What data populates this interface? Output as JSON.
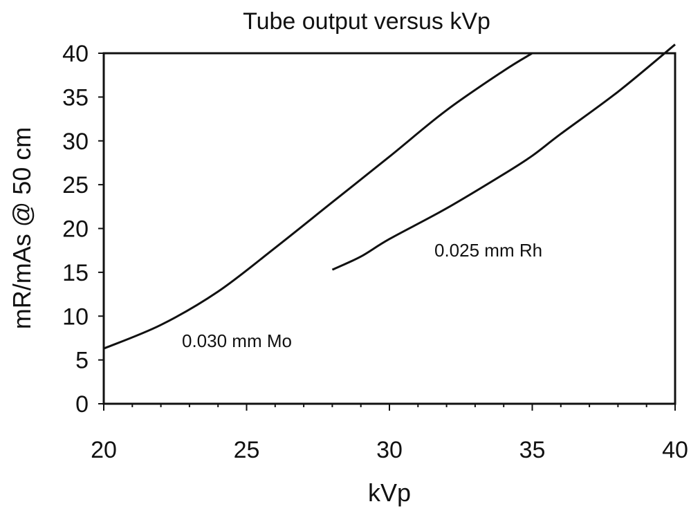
{
  "chart_data": {
    "type": "line",
    "title": "Tube output versus kVp",
    "xlabel": "kVp",
    "ylabel": "mR/mAs @ 50 cm",
    "xlim": [
      20,
      40
    ],
    "ylim": [
      0,
      40
    ],
    "x_ticks": [
      20,
      25,
      30,
      35,
      40
    ],
    "y_ticks": [
      0,
      5,
      10,
      15,
      20,
      25,
      30,
      35,
      40
    ],
    "grid": false,
    "legend": "none",
    "series": [
      {
        "name": "0.030 mm Mo",
        "x": [
          20,
          22,
          24,
          26,
          28,
          30,
          32,
          34,
          35
        ],
        "y": [
          6.3,
          9,
          12.8,
          17.8,
          23,
          28.2,
          33.5,
          38,
          40
        ]
      },
      {
        "name": "0.025 mm Rh",
        "x": [
          28,
          29,
          30,
          32,
          34,
          35,
          36,
          38,
          40
        ],
        "y": [
          15.3,
          16.8,
          18.8,
          22.3,
          26.2,
          28.3,
          30.8,
          35.6,
          41
        ]
      }
    ]
  }
}
